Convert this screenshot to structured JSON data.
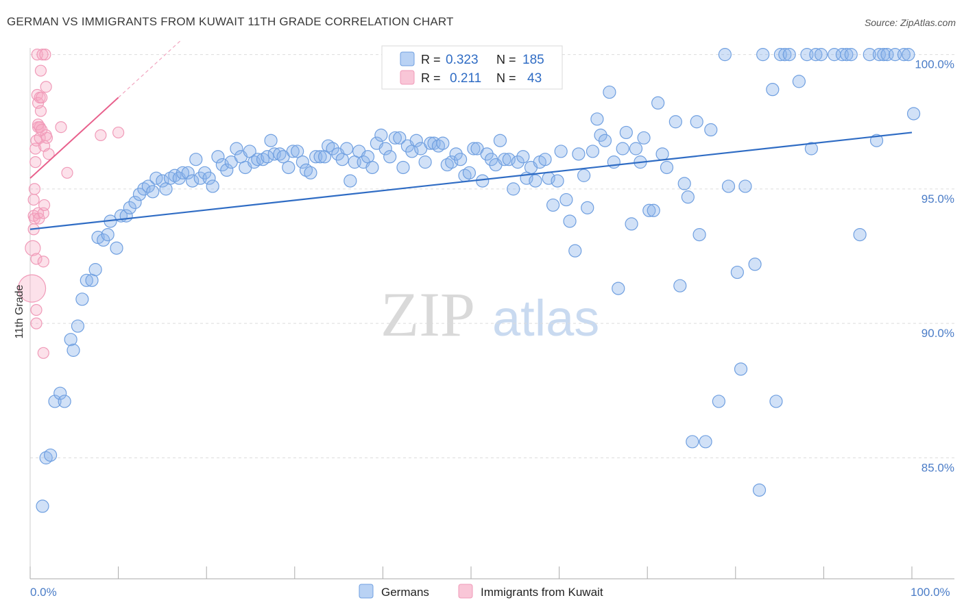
{
  "header": {
    "title": "GERMAN VS IMMIGRANTS FROM KUWAIT 11TH GRADE CORRELATION CHART",
    "source": "Source: ZipAtlas.com"
  },
  "watermark": {
    "zip": "ZIP",
    "atlas": "atlas"
  },
  "colors": {
    "blue": "#6f9fe0",
    "blue_line": "#2f6cc4",
    "pink": "#f09ab8",
    "pink_line": "#e8608c"
  },
  "legend": {
    "rows": [
      {
        "r_label": "R =",
        "r_value": "0.323",
        "n_label": "N =",
        "n_value": "185"
      },
      {
        "r_label": "R =",
        "r_value": "0.211",
        "n_label": "N =",
        "n_value": "43"
      }
    ],
    "bottom": [
      "Germans",
      "Immigrants from Kuwait"
    ]
  },
  "chart_data": {
    "type": "scatter",
    "title": "GERMAN VS IMMIGRANTS FROM KUWAIT 11TH GRADE CORRELATION CHART",
    "xlabel": "",
    "ylabel": "11th Grade",
    "xlim": [
      0,
      100
    ],
    "ylim": [
      80.5,
      100.5
    ],
    "x_tick_labels": [
      "0.0%",
      "100.0%"
    ],
    "y_ticks": [
      85,
      90,
      95,
      100
    ],
    "y_tick_labels": [
      "85.0%",
      "90.0%",
      "95.0%",
      "100.0%"
    ],
    "grid": true,
    "legend_position": "top-center",
    "series": [
      {
        "name": "Germans",
        "trend": {
          "x": [
            0,
            100
          ],
          "y": [
            93.5,
            97.1
          ]
        },
        "points": [
          [
            1.4,
            83.2
          ],
          [
            1.8,
            85.0
          ],
          [
            2.3,
            85.1
          ],
          [
            2.8,
            87.1
          ],
          [
            3.4,
            87.4
          ],
          [
            3.9,
            87.1
          ],
          [
            4.6,
            89.4
          ],
          [
            4.9,
            89.0
          ],
          [
            5.4,
            89.9
          ],
          [
            5.9,
            90.9
          ],
          [
            6.4,
            91.6
          ],
          [
            7.0,
            91.6
          ],
          [
            7.4,
            92.0
          ],
          [
            7.7,
            93.2
          ],
          [
            8.3,
            93.1
          ],
          [
            8.8,
            93.3
          ],
          [
            9.1,
            93.8
          ],
          [
            9.8,
            92.8
          ],
          [
            10.3,
            94.0
          ],
          [
            10.9,
            94.0
          ],
          [
            11.3,
            94.3
          ],
          [
            11.9,
            94.5
          ],
          [
            12.4,
            94.8
          ],
          [
            12.9,
            95.0
          ],
          [
            13.4,
            95.1
          ],
          [
            13.9,
            94.9
          ],
          [
            14.3,
            95.4
          ],
          [
            15.0,
            95.3
          ],
          [
            15.4,
            95.0
          ],
          [
            15.9,
            95.4
          ],
          [
            16.4,
            95.5
          ],
          [
            16.9,
            95.4
          ],
          [
            17.3,
            95.6
          ],
          [
            17.9,
            95.6
          ],
          [
            18.4,
            95.3
          ],
          [
            18.8,
            96.1
          ],
          [
            19.3,
            95.4
          ],
          [
            19.8,
            95.6
          ],
          [
            20.3,
            95.4
          ],
          [
            20.7,
            95.1
          ],
          [
            21.3,
            96.2
          ],
          [
            21.8,
            95.9
          ],
          [
            22.3,
            95.7
          ],
          [
            22.8,
            96.0
          ],
          [
            23.4,
            96.5
          ],
          [
            23.9,
            96.2
          ],
          [
            24.4,
            95.8
          ],
          [
            24.9,
            96.4
          ],
          [
            25.4,
            96.0
          ],
          [
            25.8,
            96.1
          ],
          [
            26.4,
            96.1
          ],
          [
            26.9,
            96.2
          ],
          [
            27.3,
            96.8
          ],
          [
            27.7,
            96.3
          ],
          [
            28.3,
            96.3
          ],
          [
            28.7,
            96.2
          ],
          [
            29.3,
            95.8
          ],
          [
            29.8,
            96.4
          ],
          [
            30.3,
            96.4
          ],
          [
            30.9,
            96.0
          ],
          [
            31.3,
            95.7
          ],
          [
            31.8,
            95.6
          ],
          [
            32.4,
            96.2
          ],
          [
            32.9,
            96.2
          ],
          [
            33.4,
            96.2
          ],
          [
            33.8,
            96.6
          ],
          [
            34.3,
            96.5
          ],
          [
            34.9,
            96.3
          ],
          [
            35.4,
            96.1
          ],
          [
            35.9,
            96.5
          ],
          [
            36.3,
            95.3
          ],
          [
            36.8,
            96.0
          ],
          [
            37.3,
            96.4
          ],
          [
            37.8,
            96.0
          ],
          [
            38.3,
            96.2
          ],
          [
            38.8,
            95.8
          ],
          [
            39.3,
            96.7
          ],
          [
            39.8,
            97.0
          ],
          [
            40.3,
            96.5
          ],
          [
            40.8,
            96.2
          ],
          [
            41.4,
            96.9
          ],
          [
            41.9,
            96.9
          ],
          [
            42.3,
            95.8
          ],
          [
            42.8,
            96.6
          ],
          [
            43.3,
            96.4
          ],
          [
            43.8,
            96.8
          ],
          [
            44.3,
            96.5
          ],
          [
            44.8,
            96.0
          ],
          [
            45.4,
            96.7
          ],
          [
            45.8,
            96.7
          ],
          [
            46.3,
            96.6
          ],
          [
            46.8,
            96.7
          ],
          [
            47.3,
            95.9
          ],
          [
            47.8,
            96.0
          ],
          [
            48.3,
            96.3
          ],
          [
            48.8,
            96.1
          ],
          [
            49.3,
            95.5
          ],
          [
            49.8,
            95.6
          ],
          [
            50.3,
            96.5
          ],
          [
            50.7,
            96.5
          ],
          [
            51.3,
            95.3
          ],
          [
            51.8,
            96.3
          ],
          [
            52.3,
            96.1
          ],
          [
            52.8,
            95.9
          ],
          [
            53.3,
            96.8
          ],
          [
            53.8,
            96.1
          ],
          [
            54.3,
            96.1
          ],
          [
            54.8,
            95.0
          ],
          [
            55.3,
            96.0
          ],
          [
            55.9,
            96.2
          ],
          [
            56.3,
            95.4
          ],
          [
            56.8,
            95.8
          ],
          [
            57.3,
            95.3
          ],
          [
            57.8,
            96.0
          ],
          [
            58.4,
            96.1
          ],
          [
            58.8,
            95.4
          ],
          [
            59.3,
            94.4
          ],
          [
            59.8,
            95.3
          ],
          [
            60.2,
            96.4
          ],
          [
            60.8,
            94.6
          ],
          [
            61.2,
            93.8
          ],
          [
            61.8,
            92.7
          ],
          [
            62.2,
            96.3
          ],
          [
            62.8,
            95.5
          ],
          [
            63.2,
            94.3
          ],
          [
            63.8,
            96.4
          ],
          [
            64.3,
            97.6
          ],
          [
            64.7,
            97.0
          ],
          [
            65.2,
            96.8
          ],
          [
            65.7,
            98.6
          ],
          [
            66.2,
            96.0
          ],
          [
            66.7,
            91.3
          ],
          [
            67.2,
            96.5
          ],
          [
            67.6,
            97.1
          ],
          [
            68.2,
            93.7
          ],
          [
            68.7,
            96.5
          ],
          [
            69.2,
            96.0
          ],
          [
            69.6,
            96.9
          ],
          [
            70.2,
            94.2
          ],
          [
            70.7,
            94.2
          ],
          [
            71.2,
            98.2
          ],
          [
            71.7,
            96.3
          ],
          [
            72.2,
            95.8
          ],
          [
            73.2,
            97.5
          ],
          [
            73.7,
            91.4
          ],
          [
            74.2,
            95.2
          ],
          [
            74.6,
            94.7
          ],
          [
            75.1,
            85.6
          ],
          [
            75.6,
            97.5
          ],
          [
            75.9,
            93.3
          ],
          [
            76.6,
            85.6
          ],
          [
            77.2,
            97.2
          ],
          [
            78.1,
            87.1
          ],
          [
            78.8,
            100.0
          ],
          [
            79.2,
            95.1
          ],
          [
            80.2,
            91.9
          ],
          [
            80.6,
            88.3
          ],
          [
            81.1,
            95.1
          ],
          [
            82.2,
            92.2
          ],
          [
            82.7,
            83.8
          ],
          [
            83.1,
            100.0
          ],
          [
            84.2,
            98.7
          ],
          [
            84.6,
            87.1
          ],
          [
            85.1,
            100.0
          ],
          [
            85.6,
            100.0
          ],
          [
            86.1,
            100.0
          ],
          [
            87.2,
            99.0
          ],
          [
            88.1,
            100.0
          ],
          [
            88.6,
            96.5
          ],
          [
            89.1,
            100.0
          ],
          [
            89.7,
            100.0
          ],
          [
            91.2,
            100.0
          ],
          [
            92.1,
            100.0
          ],
          [
            92.6,
            100.0
          ],
          [
            93.1,
            100.0
          ],
          [
            94.1,
            93.3
          ],
          [
            95.2,
            100.0
          ],
          [
            96.3,
            100.0
          ],
          [
            96.8,
            100.0
          ],
          [
            97.2,
            100.0
          ],
          [
            98.1,
            100.0
          ],
          [
            99.1,
            100.0
          ],
          [
            99.6,
            100.0
          ],
          [
            100.2,
            97.8
          ],
          [
            96.0,
            96.8
          ]
        ]
      },
      {
        "name": "Immigrants from Kuwait",
        "trend": {
          "x": [
            0,
            10
          ],
          "y": [
            95.4,
            98.4
          ]
        },
        "points": [
          [
            0.2,
            91.3
          ],
          [
            0.3,
            92.8
          ],
          [
            0.4,
            93.5
          ],
          [
            0.4,
            94.0
          ],
          [
            0.4,
            94.6
          ],
          [
            0.5,
            95.0
          ],
          [
            0.5,
            93.9
          ],
          [
            0.6,
            96.0
          ],
          [
            0.6,
            96.5
          ],
          [
            0.7,
            90.5
          ],
          [
            0.7,
            92.4
          ],
          [
            0.7,
            90.0
          ],
          [
            0.7,
            96.8
          ],
          [
            0.8,
            98.5
          ],
          [
            0.8,
            100.0
          ],
          [
            0.9,
            98.2
          ],
          [
            0.9,
            97.3
          ],
          [
            0.9,
            94.1
          ],
          [
            1.0,
            93.9
          ],
          [
            1.1,
            97.3
          ],
          [
            1.1,
            97.3
          ],
          [
            1.1,
            98.4
          ],
          [
            1.1,
            96.9
          ],
          [
            1.2,
            99.4
          ],
          [
            1.2,
            97.9
          ],
          [
            1.3,
            98.4
          ],
          [
            1.4,
            100.0
          ],
          [
            1.5,
            94.1
          ],
          [
            1.5,
            92.3
          ],
          [
            1.5,
            88.9
          ],
          [
            1.6,
            96.6
          ],
          [
            1.6,
            94.4
          ],
          [
            1.7,
            100.0
          ],
          [
            1.8,
            97.0
          ],
          [
            1.8,
            98.8
          ],
          [
            1.9,
            96.9
          ],
          [
            2.1,
            96.3
          ],
          [
            3.5,
            97.3
          ],
          [
            4.2,
            95.6
          ],
          [
            8.0,
            97.0
          ],
          [
            10.0,
            97.1
          ],
          [
            0.9,
            97.4
          ],
          [
            1.3,
            97.2
          ]
        ]
      }
    ]
  }
}
